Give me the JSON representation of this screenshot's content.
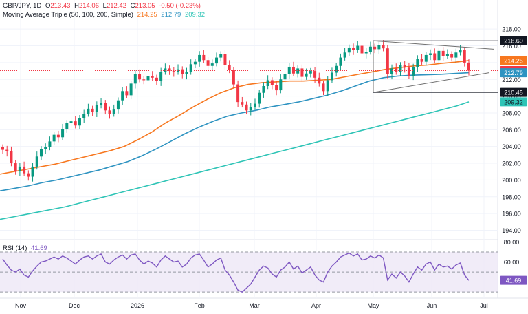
{
  "header": {
    "symbol": "GBP/JPY, 1D",
    "o_label": "O",
    "o_value": "213.43",
    "h_label": "H",
    "h_value": "214.06",
    "l_label": "L",
    "l_value": "212.42",
    "c_label": "C",
    "c_value": "213.05",
    "change": "-0.50 (-0.23%)",
    "ma_title": "Moving Average Triple (50, 100, 200, Simple)",
    "ma50": "214.25",
    "ma100": "212.79",
    "ma200": "209.32"
  },
  "rsi_header": {
    "title": "RSI (14)",
    "value": "41.69"
  },
  "colors": {
    "up": "#089981",
    "down": "#f23645",
    "ma50": "#f7771f",
    "ma100": "#2e93c1",
    "ma200": "#2ec4b6",
    "rsi": "#7e57c2",
    "rsi_band": "#ede7f6",
    "price_label": "#f23645",
    "level_label": "#131722",
    "pattern": "#707070"
  },
  "chart_data": [
    {
      "type": "line",
      "title": "GBP/JPY, 1D",
      "ylim": [
        193.3,
        219.0
      ],
      "x_tick_labels": [
        "Nov",
        "Dec",
        "2026",
        "Feb",
        "Mar",
        "Apr",
        "May",
        "Jun",
        "Jul"
      ],
      "y_tick_labels": [
        194,
        196,
        198,
        200,
        202,
        204,
        206,
        208,
        210,
        212,
        214,
        216,
        218
      ],
      "grid": true,
      "price_badges": [
        {
          "label": "216.60",
          "value": 216.6,
          "style": "level"
        },
        {
          "label": "214.25",
          "value": 214.25,
          "style": "ma50"
        },
        {
          "label": "213.05",
          "value": 213.05,
          "style": "price"
        },
        {
          "label": "212.79",
          "value": 212.79,
          "style": "ma100"
        },
        {
          "label": "210.45",
          "value": 210.45,
          "style": "level"
        },
        {
          "label": "209.32",
          "value": 209.32,
          "style": "ma200"
        }
      ],
      "candles_close": [
        203.6,
        203.4,
        202.0,
        201.1,
        201.6,
        200.8,
        200.4,
        201.6,
        202.8,
        203.7,
        203.9,
        204.6,
        205.4,
        205.1,
        206.1,
        206.8,
        207.0,
        206.5,
        207.4,
        207.9,
        208.5,
        208.1,
        208.9,
        209.2,
        208.3,
        207.9,
        208.4,
        209.5,
        210.6,
        210.1,
        211.5,
        212.6,
        212.0,
        211.9,
        212.4,
        212.2,
        211.8,
        212.9,
        213.3,
        213.0,
        212.9,
        213.2,
        212.6,
        212.9,
        213.8,
        214.1,
        214.9,
        214.3,
        213.6,
        213.9,
        214.6,
        215.0,
        213.7,
        213.1,
        211.4,
        209.3,
        209.0,
        208.3,
        208.7,
        209.1,
        210.4,
        211.2,
        211.9,
        211.3,
        210.7,
        212.0,
        212.6,
        213.5,
        212.7,
        213.3,
        212.3,
        212.7,
        213.0,
        212.2,
        211.5,
        210.6,
        211.9,
        212.8,
        213.6,
        214.6,
        215.2,
        215.8,
        215.5,
        216.0,
        215.1,
        215.3,
        215.9,
        215.6,
        216.1,
        215.7,
        212.6,
        213.3,
        212.9,
        213.7,
        213.4,
        212.4,
        213.5,
        214.4,
        214.1,
        214.9,
        215.1,
        214.3,
        215.4,
        214.8,
        215.0,
        214.6,
        215.2,
        215.5,
        214.0,
        213.05
      ],
      "series": [
        {
          "name": "MA 50",
          "values": [
            200.7,
            201.0,
            201.3,
            201.6,
            201.9,
            202.3,
            202.7,
            203.1,
            203.5,
            204.0,
            204.8,
            205.7,
            206.8,
            207.7,
            208.7,
            209.6,
            210.4,
            211.0,
            211.4,
            211.6,
            211.7,
            211.8,
            211.8,
            211.9,
            212.0,
            212.3,
            212.6,
            212.9,
            213.2,
            213.4,
            213.6,
            213.7,
            213.9,
            214.05,
            214.25
          ]
        },
        {
          "name": "MA 100",
          "values": [
            198.7,
            199.0,
            199.3,
            199.7,
            200.0,
            200.4,
            200.8,
            201.2,
            201.7,
            202.2,
            202.9,
            203.7,
            204.6,
            205.5,
            206.3,
            207.0,
            207.6,
            208.0,
            208.3,
            208.7,
            209.0,
            209.3,
            209.7,
            210.1,
            210.6,
            211.2,
            211.8,
            212.2,
            212.4,
            212.5,
            212.55,
            212.6,
            212.7,
            212.79
          ]
        },
        {
          "name": "MA 200",
          "values": [
            195.3,
            195.6,
            195.9,
            196.2,
            196.5,
            196.8,
            197.2,
            197.6,
            198.0,
            198.4,
            198.8,
            199.2,
            199.6,
            200.0,
            200.4,
            200.8,
            201.2,
            201.6,
            202.0,
            202.4,
            202.8,
            203.2,
            203.6,
            204.0,
            204.4,
            204.8,
            205.2,
            205.6,
            206.0,
            206.4,
            206.8,
            207.2,
            207.6,
            208.0,
            208.4,
            208.8,
            209.32
          ]
        }
      ],
      "triangle": {
        "upper": [
          216.6,
          215.6
        ],
        "lower": [
          210.45,
          212.8
        ]
      }
    },
    {
      "type": "line",
      "title": "RSI (14)",
      "ylim": [
        26,
        81
      ],
      "y_tick_labels": [
        40,
        60,
        80
      ],
      "band": [
        30,
        70
      ],
      "midline": 50,
      "series": [
        {
          "name": "RSI (14)",
          "values": [
            63,
            57,
            52,
            50,
            53,
            47,
            45,
            51,
            56,
            60,
            61,
            63,
            65,
            63,
            66,
            64,
            61,
            58,
            62,
            65,
            66,
            63,
            66,
            68,
            60,
            58,
            62,
            65,
            67,
            63,
            67,
            68,
            62,
            58,
            61,
            59,
            55,
            62,
            66,
            63,
            60,
            61,
            55,
            58,
            64,
            67,
            68,
            62,
            55,
            58,
            62,
            64,
            52,
            47,
            40,
            32,
            30,
            34,
            38,
            45,
            52,
            56,
            54,
            48,
            45,
            52,
            55,
            60,
            53,
            56,
            49,
            52,
            55,
            47,
            42,
            40,
            50,
            56,
            60,
            65,
            67,
            69,
            66,
            68,
            62,
            63,
            66,
            64,
            67,
            64,
            42,
            48,
            44,
            50,
            46,
            40,
            48,
            55,
            52,
            58,
            60,
            52,
            58,
            55,
            56,
            53,
            57,
            59,
            47,
            41.69
          ]
        }
      ]
    }
  ]
}
